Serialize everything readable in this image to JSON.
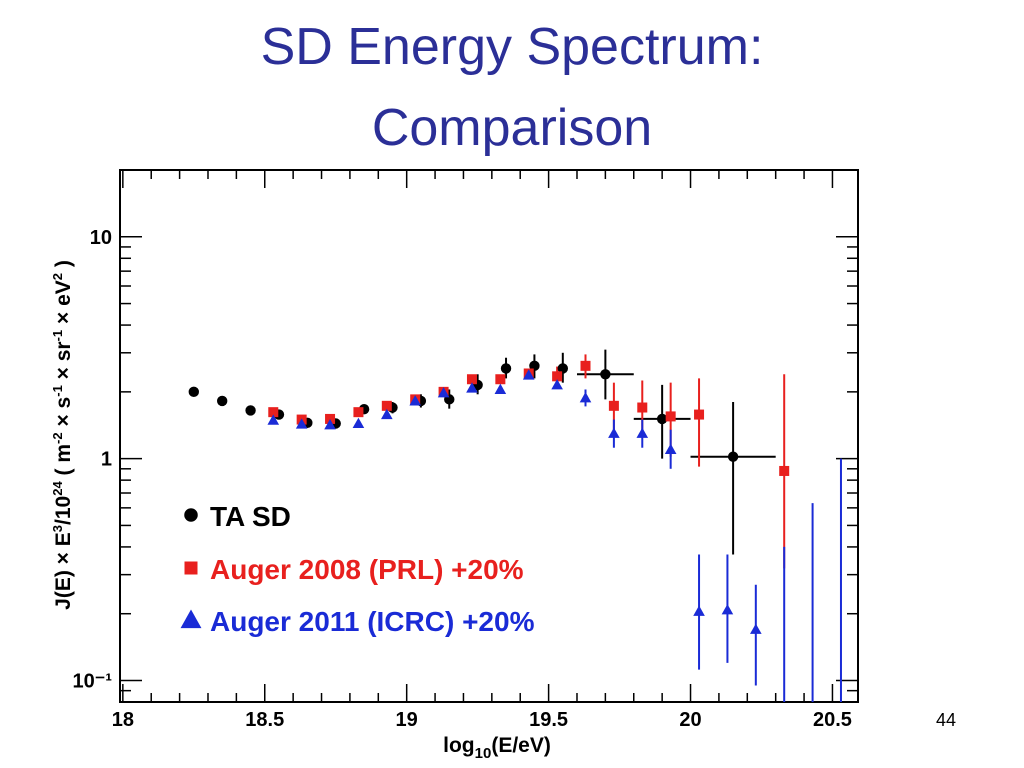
{
  "slide": {
    "title_line_1": "SD Energy Spectrum:",
    "title_line_2": "Comparison",
    "page_number": "44"
  },
  "colors": {
    "title": "#2b2f97",
    "ta_sd": "#000000",
    "auger_2008": "#e8201e",
    "auger_2011": "#1a2bd6"
  },
  "chart_data": {
    "type": "scatter",
    "xlabel": "log10(E/eV)",
    "ylabel": "J(E) × E³/10²⁴ ( m⁻² × s⁻¹ × sr⁻¹ × eV² )",
    "xlim": [
      17.99,
      20.59
    ],
    "ylim": [
      0.08,
      20
    ],
    "yscale": "log",
    "grid": false,
    "legend_position": "bottom-left",
    "x_ticks": [
      {
        "value": 18,
        "label": "18"
      },
      {
        "value": 18.5,
        "label": "18.5"
      },
      {
        "value": 19,
        "label": "19"
      },
      {
        "value": 19.5,
        "label": "19.5"
      },
      {
        "value": 20,
        "label": "20"
      },
      {
        "value": 20.5,
        "label": "20.5"
      }
    ],
    "y_ticks": [
      {
        "value": 10,
        "label": "10"
      },
      {
        "value": 1,
        "label": "1"
      },
      {
        "value": 0.1,
        "label": "10⁻¹"
      }
    ],
    "series": [
      {
        "name": "TA SD",
        "marker": "circle",
        "color": "#000000",
        "points": [
          {
            "x": 18.25,
            "y": 2.0
          },
          {
            "x": 18.35,
            "y": 1.82
          },
          {
            "x": 18.45,
            "y": 1.65
          },
          {
            "x": 18.55,
            "y": 1.58
          },
          {
            "x": 18.65,
            "y": 1.45
          },
          {
            "x": 18.75,
            "y": 1.44
          },
          {
            "x": 18.85,
            "y": 1.67
          },
          {
            "x": 18.95,
            "y": 1.7,
            "yerr": [
              1.6,
              1.8
            ]
          },
          {
            "x": 19.05,
            "y": 1.82,
            "yerr": [
              1.7,
              1.95
            ]
          },
          {
            "x": 19.15,
            "y": 1.85,
            "yerr": [
              1.68,
              2.05
            ]
          },
          {
            "x": 19.25,
            "y": 2.15,
            "yerr": [
              1.95,
              2.4
            ]
          },
          {
            "x": 19.35,
            "y": 2.55,
            "yerr": [
              2.3,
              2.85
            ]
          },
          {
            "x": 19.45,
            "y": 2.62,
            "yerr": [
              2.3,
              2.95
            ]
          },
          {
            "x": 19.55,
            "y": 2.55,
            "yerr": [
              2.2,
              3.0
            ]
          },
          {
            "x": 19.7,
            "y": 2.4,
            "xerr": [
              19.6,
              19.8
            ],
            "yerr": [
              1.85,
              3.1
            ]
          },
          {
            "x": 19.9,
            "y": 1.51,
            "xerr": [
              19.8,
              20.0
            ],
            "yerr": [
              1.0,
              2.15
            ]
          },
          {
            "x": 20.15,
            "y": 1.02,
            "xerr": [
              20.0,
              20.3
            ],
            "yerr": [
              0.37,
              1.8
            ]
          }
        ]
      },
      {
        "name": "Auger 2008 (PRL) +20%",
        "marker": "square",
        "color": "#e8201e",
        "points": [
          {
            "x": 18.53,
            "y": 1.62
          },
          {
            "x": 18.63,
            "y": 1.5
          },
          {
            "x": 18.73,
            "y": 1.51
          },
          {
            "x": 18.83,
            "y": 1.62
          },
          {
            "x": 18.93,
            "y": 1.73
          },
          {
            "x": 19.03,
            "y": 1.85
          },
          {
            "x": 19.13,
            "y": 2.0
          },
          {
            "x": 19.23,
            "y": 2.28
          },
          {
            "x": 19.33,
            "y": 2.28
          },
          {
            "x": 19.43,
            "y": 2.42
          },
          {
            "x": 19.53,
            "y": 2.35,
            "yerr": [
              2.1,
              2.6
            ]
          },
          {
            "x": 19.63,
            "y": 2.62,
            "yerr": [
              2.3,
              2.95
            ]
          },
          {
            "x": 19.73,
            "y": 1.73,
            "yerr": [
              1.3,
              2.2
            ]
          },
          {
            "x": 19.83,
            "y": 1.7,
            "yerr": [
              1.25,
              2.25
            ]
          },
          {
            "x": 19.93,
            "y": 1.55,
            "yerr": [
              1.02,
              2.2
            ]
          },
          {
            "x": 20.03,
            "y": 1.58,
            "yerr": [
              0.92,
              2.3
            ]
          },
          {
            "x": 20.33,
            "y": 0.88,
            "yerr": [
              0.32,
              2.4
            ]
          }
        ]
      },
      {
        "name": "Auger 2011 (ICRC) +20%",
        "marker": "triangle",
        "color": "#1a2bd6",
        "points": [
          {
            "x": 18.53,
            "y": 1.49
          },
          {
            "x": 18.63,
            "y": 1.43
          },
          {
            "x": 18.73,
            "y": 1.42
          },
          {
            "x": 18.83,
            "y": 1.44
          },
          {
            "x": 18.93,
            "y": 1.58
          },
          {
            "x": 19.03,
            "y": 1.82
          },
          {
            "x": 19.13,
            "y": 1.98
          },
          {
            "x": 19.23,
            "y": 2.08
          },
          {
            "x": 19.33,
            "y": 2.05
          },
          {
            "x": 19.43,
            "y": 2.38
          },
          {
            "x": 19.53,
            "y": 2.15
          },
          {
            "x": 19.63,
            "y": 1.88,
            "yerr": [
              1.72,
              2.05
            ]
          },
          {
            "x": 19.73,
            "y": 1.3,
            "yerr": [
              1.12,
              1.5
            ]
          },
          {
            "x": 19.83,
            "y": 1.3,
            "yerr": [
              1.12,
              1.5
            ]
          },
          {
            "x": 19.93,
            "y": 1.1,
            "yerr": [
              0.9,
              1.35
            ]
          },
          {
            "x": 20.03,
            "y": 0.205,
            "yerr": [
              0.112,
              0.37
            ]
          },
          {
            "x": 20.13,
            "y": 0.208,
            "yerr": [
              0.12,
              0.37
            ]
          },
          {
            "x": 20.23,
            "y": 0.17,
            "yerr": [
              0.095,
              0.27
            ]
          },
          {
            "x": 20.33,
            "yerr": [
              0.075,
              0.4
            ]
          },
          {
            "x": 20.43,
            "yerr": [
              0.075,
              0.63
            ]
          },
          {
            "x": 20.53,
            "yerr": [
              0.075,
              1.0
            ]
          }
        ]
      }
    ]
  }
}
